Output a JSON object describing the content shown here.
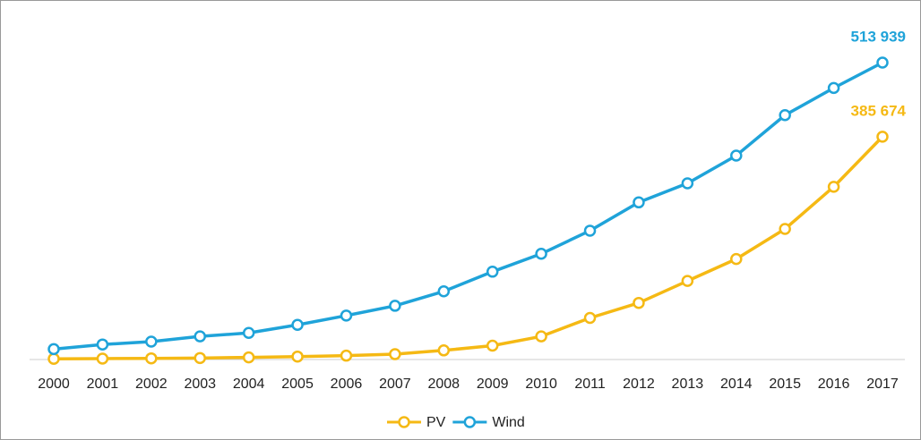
{
  "chart_data": {
    "type": "line",
    "categories": [
      "2000",
      "2001",
      "2002",
      "2003",
      "2004",
      "2005",
      "2006",
      "2007",
      "2008",
      "2009",
      "2010",
      "2011",
      "2012",
      "2013",
      "2014",
      "2015",
      "2016",
      "2017"
    ],
    "series": [
      {
        "name": "PV",
        "color": "#f5b914",
        "values": [
          1250,
          1600,
          2000,
          2600,
          3700,
          5100,
          6700,
          9200,
          15800,
          24000,
          40000,
          72000,
          98000,
          136000,
          174000,
          226000,
          299000,
          385674
        ],
        "value_labels": [
          null,
          null,
          null,
          null,
          null,
          null,
          null,
          null,
          null,
          null,
          null,
          null,
          null,
          null,
          null,
          null,
          null,
          "385 674"
        ]
      },
      {
        "name": "Wind",
        "color": "#1fa3d9",
        "values": [
          18000,
          26000,
          31000,
          40000,
          46000,
          60000,
          76000,
          93000,
          118000,
          152000,
          183000,
          223000,
          272000,
          305000,
          353000,
          423000,
          470000,
          513939
        ],
        "value_labels": [
          null,
          null,
          null,
          null,
          null,
          null,
          null,
          null,
          null,
          null,
          null,
          null,
          null,
          null,
          null,
          null,
          null,
          "513 939"
        ]
      }
    ],
    "legend": "bottom"
  }
}
